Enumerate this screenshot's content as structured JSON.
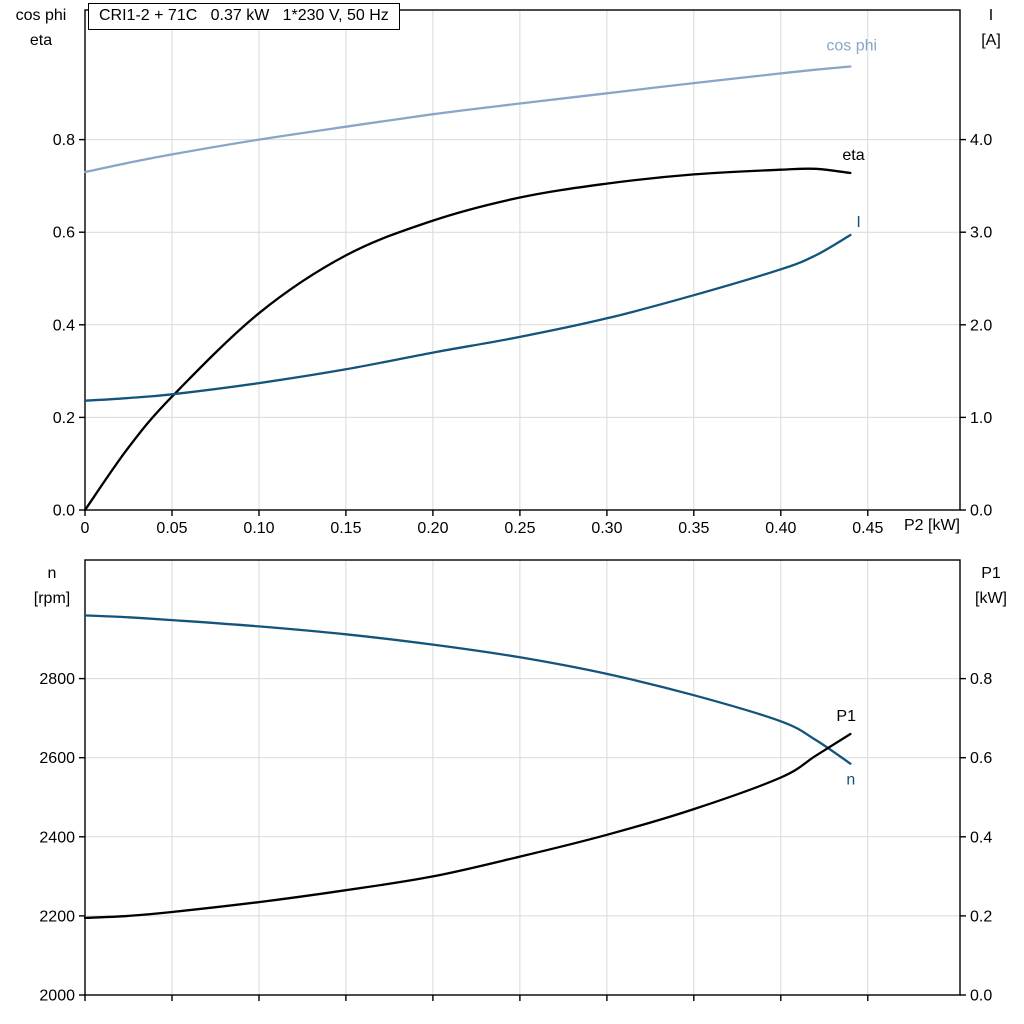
{
  "title_box": {
    "text": "CRI1-2 + 71C   0.37 kW   1*230 V, 50 Hz"
  },
  "colors": {
    "cos_phi": "#89a6c7",
    "current_blue": "#14547c",
    "black": "#000000",
    "grid": "#d9d9d9",
    "frame": "#000000"
  },
  "chart_data": [
    {
      "type": "line",
      "title": "CRI1-2 + 71C 0.37 kW 1*230 V, 50 Hz",
      "xlabel": "P2 [kW]",
      "xlim": [
        0,
        0.503
      ],
      "xticks": [
        0,
        0.05,
        0.1,
        0.15,
        0.2,
        0.25,
        0.3,
        0.35,
        0.4,
        0.45
      ],
      "xtick_labels": [
        "0",
        "0.05",
        "0.10",
        "0.15",
        "0.20",
        "0.25",
        "0.30",
        "0.35",
        "0.40",
        "0.45"
      ],
      "grid": true,
      "left_axis": {
        "title_line1": "cos phi",
        "title_line2": "eta",
        "lim": [
          0,
          1.08
        ],
        "ticks": [
          0,
          0.2,
          0.4,
          0.6,
          0.8
        ],
        "labels": [
          "0.0",
          "0.2",
          "0.4",
          "0.6",
          "0.8"
        ]
      },
      "right_axis": {
        "title_line1": "I",
        "title_line2": "[A]",
        "lim": [
          0,
          5.4
        ],
        "ticks": [
          0,
          1,
          2,
          3,
          4
        ],
        "labels": [
          "0.0",
          "1.0",
          "2.0",
          "3.0",
          "4.0"
        ]
      },
      "x": [
        0,
        0.025,
        0.05,
        0.1,
        0.15,
        0.2,
        0.25,
        0.3,
        0.35,
        0.4,
        0.42,
        0.44
      ],
      "series": [
        {
          "name": "cos phi",
          "axis": "left",
          "color": "#89a6c7",
          "values": [
            0.73,
            0.75,
            0.768,
            0.8,
            0.828,
            0.855,
            0.878,
            0.9,
            0.922,
            0.943,
            0.951,
            0.958
          ],
          "label_dx": -24,
          "label_dy": -16
        },
        {
          "name": "eta",
          "axis": "left",
          "color": "#000000",
          "values": [
            0.0,
            0.135,
            0.245,
            0.425,
            0.55,
            0.625,
            0.675,
            0.705,
            0.725,
            0.735,
            0.737,
            0.728
          ],
          "label_dx": -8,
          "label_dy": -13
        },
        {
          "name": "I",
          "axis": "right",
          "color": "#14547c",
          "values": [
            1.18,
            1.21,
            1.25,
            1.37,
            1.52,
            1.7,
            1.87,
            2.07,
            2.32,
            2.6,
            2.75,
            2.97
          ],
          "label_dx": 6,
          "label_dy": -8
        }
      ]
    },
    {
      "type": "line",
      "title": "",
      "xlabel": "",
      "xlim": [
        0,
        0.503
      ],
      "xticks": [
        0,
        0.05,
        0.1,
        0.15,
        0.2,
        0.25,
        0.3,
        0.35,
        0.4,
        0.45
      ],
      "xtick_labels": [],
      "grid": true,
      "left_axis": {
        "title_line1": "n",
        "title_line2": "[rpm]",
        "lim": [
          2000,
          3100
        ],
        "ticks": [
          2000,
          2200,
          2400,
          2600,
          2800
        ],
        "labels": [
          "2000",
          "2200",
          "2400",
          "2600",
          "2800"
        ]
      },
      "right_axis": {
        "title_line1": "P1",
        "title_line2": "[kW]",
        "lim": [
          0,
          1.1
        ],
        "ticks": [
          0,
          0.2,
          0.4,
          0.6,
          0.8
        ],
        "labels": [
          "0.0",
          "0.2",
          "0.4",
          "0.6",
          "0.8"
        ]
      },
      "x": [
        0,
        0.025,
        0.05,
        0.1,
        0.15,
        0.2,
        0.25,
        0.3,
        0.35,
        0.4,
        0.42,
        0.44
      ],
      "series": [
        {
          "name": "n",
          "axis": "left",
          "color": "#14547c",
          "values": [
            2960,
            2955,
            2948,
            2932,
            2912,
            2886,
            2854,
            2812,
            2758,
            2692,
            2645,
            2585
          ],
          "label_dx": -4,
          "label_dy": 21
        },
        {
          "name": "P1",
          "axis": "right",
          "color": "#000000",
          "values": [
            0.195,
            0.2,
            0.21,
            0.235,
            0.265,
            0.3,
            0.35,
            0.405,
            0.47,
            0.55,
            0.605,
            0.66
          ],
          "label_dx": -14,
          "label_dy": -13
        }
      ]
    }
  ]
}
